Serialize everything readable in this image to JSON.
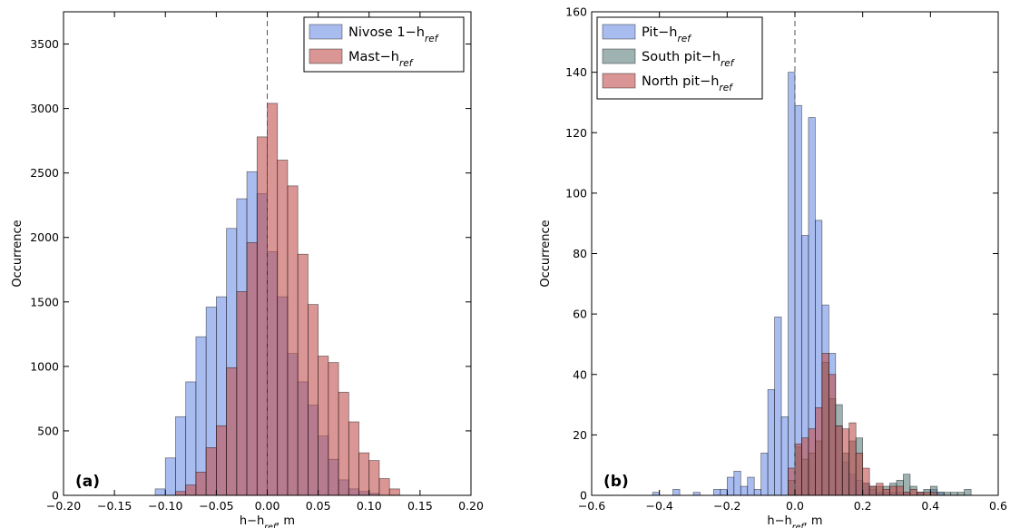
{
  "chart_data": [
    {
      "type": "histogram",
      "panel_label": "(a)",
      "xlabel_base": "h−h",
      "xlabel_sub": "ref",
      "xlabel_tail": ", m",
      "ylabel": "Occurrence",
      "xlim": [
        -0.2,
        0.2
      ],
      "ylim": [
        0,
        3750
      ],
      "xticks": [
        -0.2,
        -0.15,
        -0.1,
        -0.05,
        0.0,
        0.05,
        0.1,
        0.15,
        0.2
      ],
      "xtick_labels": [
        "−0.20",
        "−0.15",
        "−0.10",
        "−0.05",
        "0.00",
        "0.05",
        "0.10",
        "0.15",
        "0.20"
      ],
      "yticks": [
        0,
        500,
        1000,
        1500,
        2000,
        2500,
        3000,
        3500
      ],
      "ytick_labels": [
        "0",
        "500",
        "1000",
        "1500",
        "2000",
        "2500",
        "3000",
        "3500"
      ],
      "vline_x": 0.0,
      "legend_position": "top-right",
      "series": [
        {
          "name_base": "Nivose 1−h",
          "name_sub": "ref",
          "color": "#6f8fe6",
          "bin_width": 0.01,
          "bin_starts": [
            -0.11,
            -0.1,
            -0.09,
            -0.08,
            -0.07,
            -0.06,
            -0.05,
            -0.04,
            -0.03,
            -0.02,
            -0.01,
            0.0,
            0.01,
            0.02,
            0.03,
            0.04,
            0.05,
            0.06,
            0.07,
            0.08,
            0.09,
            0.1
          ],
          "counts": [
            50,
            290,
            610,
            880,
            1230,
            1460,
            1540,
            2070,
            2300,
            2510,
            2340,
            1890,
            1540,
            1100,
            880,
            700,
            460,
            280,
            120,
            50,
            30,
            15
          ]
        },
        {
          "name_base": "Mast−h",
          "name_sub": "ref",
          "color": "#c0504d",
          "bin_width": 0.01,
          "bin_starts": [
            -0.09,
            -0.08,
            -0.07,
            -0.06,
            -0.05,
            -0.04,
            -0.03,
            -0.02,
            -0.01,
            0.0,
            0.01,
            0.02,
            0.03,
            0.04,
            0.05,
            0.06,
            0.07,
            0.08,
            0.09,
            0.1,
            0.11,
            0.12
          ],
          "counts": [
            30,
            80,
            180,
            370,
            540,
            990,
            1580,
            1960,
            2780,
            3040,
            2600,
            2400,
            1870,
            1480,
            1080,
            1030,
            800,
            570,
            330,
            270,
            130,
            50
          ]
        }
      ]
    },
    {
      "type": "histogram",
      "panel_label": "(b)",
      "xlabel_base": "h−h",
      "xlabel_sub": "ref",
      "xlabel_tail": ", m",
      "ylabel": "Occurrence",
      "xlim": [
        -0.6,
        0.6
      ],
      "ylim": [
        0,
        160
      ],
      "xticks": [
        -0.6,
        -0.4,
        -0.2,
        0.0,
        0.2,
        0.4,
        0.6
      ],
      "xtick_labels": [
        "−0.6",
        "−0.4",
        "−0.2",
        "0.0",
        "0.2",
        "0.4",
        "0.6"
      ],
      "yticks": [
        0,
        20,
        40,
        60,
        80,
        100,
        120,
        140,
        160
      ],
      "ytick_labels": [
        "0",
        "20",
        "40",
        "60",
        "80",
        "100",
        "120",
        "140",
        "160"
      ],
      "vline_x": 0.0,
      "legend_position": "top-left",
      "series": [
        {
          "name_base": "Pit−h",
          "name_sub": "ref",
          "color": "#6f8fe6",
          "bin_width": 0.02,
          "bin_starts": [
            -0.42,
            -0.36,
            -0.3,
            -0.24,
            -0.22,
            -0.2,
            -0.18,
            -0.16,
            -0.14,
            -0.12,
            -0.1,
            -0.08,
            -0.06,
            -0.04,
            -0.02,
            0.0,
            0.02,
            0.04,
            0.06,
            0.08,
            0.1,
            0.12,
            0.14,
            0.16,
            0.18,
            0.2,
            0.22,
            0.24,
            0.26,
            0.28,
            0.3,
            0.32,
            0.36,
            0.4,
            0.42
          ],
          "counts": [
            1,
            2,
            1,
            2,
            2,
            6,
            8,
            3,
            6,
            2,
            14,
            35,
            59,
            26,
            140,
            129,
            86,
            125,
            91,
            63,
            47,
            23,
            11,
            7,
            5,
            4,
            2,
            1,
            1,
            1,
            1,
            1,
            1,
            2,
            1
          ]
        },
        {
          "name_base": "South pit−h",
          "name_sub": "ref",
          "color": "#5f7f7f",
          "bin_width": 0.02,
          "bin_starts": [
            -0.02,
            0.0,
            0.02,
            0.04,
            0.06,
            0.08,
            0.1,
            0.12,
            0.14,
            0.16,
            0.18,
            0.2,
            0.22,
            0.24,
            0.26,
            0.28,
            0.3,
            0.32,
            0.34,
            0.36,
            0.38,
            0.4,
            0.42,
            0.44,
            0.46,
            0.48,
            0.5
          ],
          "counts": [
            5,
            16,
            12,
            14,
            18,
            44,
            32,
            30,
            14,
            18,
            19,
            4,
            3,
            3,
            3,
            4,
            5,
            7,
            3,
            1,
            2,
            3,
            1,
            1,
            1,
            1,
            2
          ]
        },
        {
          "name_base": "North pit−h",
          "name_sub": "ref",
          "color": "#c0504d",
          "bin_width": 0.02,
          "bin_starts": [
            -0.02,
            0.0,
            0.02,
            0.04,
            0.06,
            0.08,
            0.1,
            0.12,
            0.14,
            0.16,
            0.18,
            0.2,
            0.22,
            0.24,
            0.26,
            0.28,
            0.3,
            0.32,
            0.34,
            0.36,
            0.38,
            0.4
          ],
          "counts": [
            9,
            17,
            19,
            22,
            29,
            47,
            40,
            23,
            22,
            24,
            14,
            9,
            3,
            4,
            2,
            3,
            3,
            1,
            2,
            1,
            1,
            1
          ]
        }
      ]
    }
  ]
}
